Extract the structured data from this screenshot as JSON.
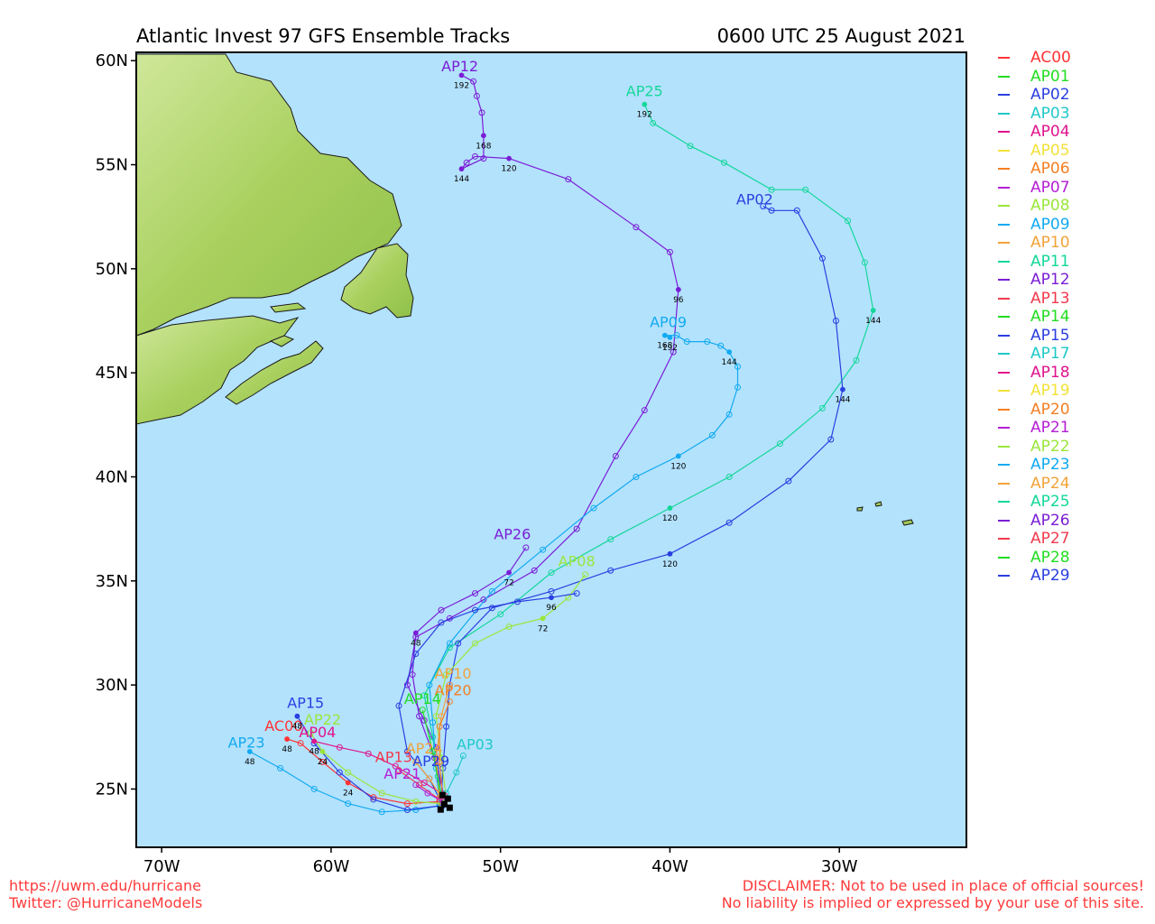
{
  "title_left": "Atlantic Invest 97 GFS Ensemble Tracks",
  "title_right": "0600 UTC 25 August 2021",
  "footer": {
    "url": "https://uwm.edu/hurricane",
    "twitter": "Twitter: @HurricaneModels",
    "disclaimer_1": "DISCLAIMER: Not to be used in place of official sources!",
    "disclaimer_2": "No liability is implied or expressed by your use of this site."
  },
  "colors": {
    "ocean": "#b3e2fd",
    "land": "#9fca55",
    "frame": "#000000"
  },
  "chart_data": {
    "type": "line",
    "xlim": [
      -71.5,
      -22.5
    ],
    "ylim": [
      22.2,
      60.4
    ],
    "x_ticks": [
      -70,
      -60,
      -50,
      -40,
      -30
    ],
    "x_tick_labels": [
      "70W",
      "60W",
      "50W",
      "40W",
      "30W"
    ],
    "y_ticks": [
      25,
      30,
      35,
      40,
      45,
      50,
      55,
      60
    ],
    "y_tick_labels": [
      "25N",
      "30N",
      "35N",
      "40N",
      "45N",
      "50N",
      "55N",
      "60N"
    ],
    "legend_placement": "right, outside plot",
    "legend": [
      {
        "name": "AC00",
        "color": "#ff3333"
      },
      {
        "name": "AP01",
        "color": "#22dd22"
      },
      {
        "name": "AP02",
        "color": "#2a3fe0"
      },
      {
        "name": "AP03",
        "color": "#20c8c8"
      },
      {
        "name": "AP04",
        "color": "#e0148c"
      },
      {
        "name": "AP05",
        "color": "#f2e23a"
      },
      {
        "name": "AP06",
        "color": "#f47f24"
      },
      {
        "name": "AP07",
        "color": "#b51ed6"
      },
      {
        "name": "AP08",
        "color": "#9be63a"
      },
      {
        "name": "AP09",
        "color": "#12aaf0"
      },
      {
        "name": "AP10",
        "color": "#f2a33a"
      },
      {
        "name": "AP11",
        "color": "#14d79a"
      },
      {
        "name": "AP12",
        "color": "#7a1ed6"
      },
      {
        "name": "AP13",
        "color": "#f23a4e"
      },
      {
        "name": "AP14",
        "color": "#22dd22"
      },
      {
        "name": "AP15",
        "color": "#2a3fe0"
      },
      {
        "name": "AP17",
        "color": "#20c8c8"
      },
      {
        "name": "AP18",
        "color": "#e0148c"
      },
      {
        "name": "AP19",
        "color": "#f2e23a"
      },
      {
        "name": "AP20",
        "color": "#f47f24"
      },
      {
        "name": "AP21",
        "color": "#b51ed6"
      },
      {
        "name": "AP22",
        "color": "#9be63a"
      },
      {
        "name": "AP23",
        "color": "#12aaf0"
      },
      {
        "name": "AP24",
        "color": "#f2a33a"
      },
      {
        "name": "AP25",
        "color": "#14d79a"
      },
      {
        "name": "AP26",
        "color": "#7a1ed6"
      },
      {
        "name": "AP27",
        "color": "#f23a4e"
      },
      {
        "name": "AP28",
        "color": "#22dd22"
      },
      {
        "name": "AP29",
        "color": "#2a3fe0"
      }
    ],
    "series": [
      {
        "name": "AP12",
        "color": "#7a1ed6",
        "lon": [
          -53.5,
          -53.6,
          -53.8,
          -54.5,
          -55.5,
          -55.0,
          -53.0,
          -51.0,
          -48.0,
          -45.5,
          -43.2,
          -41.5,
          -39.8,
          -39.5,
          -40.0,
          -42.0,
          -46.0,
          -49.5,
          -51.5,
          -52.0,
          -52.3,
          -51.0,
          -51.0,
          -51.1,
          -51.4,
          -51.6,
          -52.3
        ],
        "lat": [
          24.3,
          25.4,
          27.0,
          28.3,
          30.0,
          32.3,
          33.2,
          34.1,
          35.5,
          37.5,
          41.0,
          43.2,
          46.0,
          49.0,
          50.8,
          52.0,
          54.3,
          55.3,
          55.4,
          55.1,
          54.8,
          55.3,
          56.4,
          57.5,
          58.3,
          59.0,
          59.3
        ],
        "hours": [
          {
            "i": 13,
            "h": "96"
          },
          {
            "i": 17,
            "h": "120"
          },
          {
            "i": 20,
            "h": "144"
          },
          {
            "i": 22,
            "h": "168"
          },
          {
            "i": 26,
            "h": "192"
          }
        ],
        "label_at": [
          -52.4,
          59.5
        ]
      },
      {
        "name": "AP25",
        "color": "#14d79a",
        "lon": [
          -53.4,
          -53.7,
          -54.0,
          -54.5,
          -53.0,
          -50.0,
          -47.0,
          -43.5,
          -40.0,
          -36.5,
          -33.5,
          -31.0,
          -29.0,
          -28.0,
          -28.5,
          -29.5,
          -32.0,
          -34.0,
          -36.8,
          -38.8,
          -41.0,
          -41.5
        ],
        "lat": [
          24.4,
          25.6,
          27.5,
          29.5,
          31.8,
          33.4,
          35.4,
          37.0,
          38.5,
          40.0,
          41.6,
          43.3,
          45.6,
          48.0,
          50.3,
          52.3,
          53.8,
          53.8,
          55.1,
          55.9,
          57.0,
          57.9
        ],
        "hours": [
          {
            "i": 8,
            "h": "120"
          },
          {
            "i": 13,
            "h": "144"
          },
          {
            "i": 21,
            "h": "192"
          }
        ],
        "label_at": [
          -41.5,
          58.3
        ]
      },
      {
        "name": "AP02",
        "color": "#2a3fe0",
        "lon": [
          -53.5,
          -53.4,
          -53.2,
          -53.0,
          -52.5,
          -50.5,
          -47.0,
          -43.5,
          -40.0,
          -36.5,
          -33.0,
          -30.5,
          -29.8,
          -30.2,
          -31.0,
          -32.5,
          -34.0,
          -34.5
        ],
        "lat": [
          24.5,
          26.0,
          28.0,
          30.0,
          32.0,
          33.7,
          34.5,
          35.5,
          36.3,
          37.8,
          39.8,
          41.8,
          44.2,
          47.5,
          50.5,
          52.8,
          52.8,
          53.0
        ],
        "hours": [
          {
            "i": 8,
            "h": "120"
          },
          {
            "i": 12,
            "h": "144"
          }
        ],
        "label_at": [
          -35.0,
          53.1
        ]
      },
      {
        "name": "AP09",
        "color": "#12aaf0",
        "lon": [
          -53.6,
          -53.8,
          -54.0,
          -54.2,
          -53.0,
          -50.5,
          -47.5,
          -44.5,
          -42.0,
          -39.5,
          -37.5,
          -36.5,
          -36.0,
          -36.0,
          -36.5,
          -37.0,
          -37.8,
          -39.0,
          -39.6,
          -40.3,
          -40.0
        ],
        "lat": [
          24.3,
          26.0,
          28.2,
          30.0,
          32.0,
          34.5,
          36.5,
          38.5,
          40.0,
          41.0,
          42.0,
          43.0,
          44.3,
          45.3,
          46.0,
          46.3,
          46.5,
          46.5,
          46.8,
          46.8,
          46.7
        ],
        "hours": [
          {
            "i": 9,
            "h": "120"
          },
          {
            "i": 14,
            "h": "144"
          },
          {
            "i": 19,
            "h": "168"
          },
          {
            "i": 20,
            "h": "192"
          }
        ],
        "label_at": [
          -40.1,
          47.2
        ]
      },
      {
        "name": "AP26",
        "color": "#7a1ed6",
        "lon": [
          -53.3,
          -53.9,
          -54.8,
          -55.2,
          -55.0,
          -53.5,
          -51.5,
          -49.5,
          -48.5
        ],
        "lat": [
          24.6,
          26.5,
          28.5,
          30.5,
          32.5,
          33.6,
          34.4,
          35.4,
          36.6
        ],
        "hours": [
          {
            "i": 4,
            "h": "48"
          },
          {
            "i": 7,
            "h": "72"
          }
        ],
        "label_at": [
          -49.3,
          37.0
        ]
      },
      {
        "name": "AP08",
        "color": "#9be63a",
        "lon": [
          -53.2,
          -53.5,
          -53.8,
          -53.2,
          -51.5,
          -49.5,
          -47.5,
          -46.0,
          -45.0
        ],
        "lat": [
          24.5,
          26.5,
          28.5,
          30.5,
          32.0,
          32.8,
          33.2,
          34.2,
          35.3
        ],
        "hours": [
          {
            "i": 6,
            "h": "72"
          }
        ],
        "label_at": [
          -45.5,
          35.7
        ]
      },
      {
        "name": "AP29",
        "color": "#2a3fe0",
        "lon": [
          -53.4,
          -54.2,
          -55.5,
          -56.0,
          -55.0,
          -53.5,
          -51.5,
          -49.0,
          -47.0,
          -45.5
        ],
        "lat": [
          24.2,
          25.5,
          26.8,
          29.0,
          31.5,
          33.0,
          33.6,
          34.0,
          34.2,
          34.4
        ],
        "hours": [
          {
            "i": 8,
            "h": "96"
          }
        ],
        "label_at": [
          -54.1,
          26.1
        ]
      },
      {
        "name": "AP23",
        "color": "#12aaf0",
        "lon": [
          -53.6,
          -55.0,
          -57.0,
          -59.0,
          -61.0,
          -63.0,
          -64.8
        ],
        "lat": [
          24.2,
          24.0,
          23.9,
          24.3,
          25.0,
          26.0,
          26.8
        ],
        "hours": [
          {
            "i": 6,
            "h": "48"
          }
        ],
        "label_at": [
          -65.0,
          27.0
        ]
      },
      {
        "name": "AC00",
        "color": "#ff3333",
        "lon": [
          -53.6,
          -55.5,
          -57.5,
          -59.0,
          -60.5,
          -61.8,
          -62.6
        ],
        "lat": [
          24.4,
          24.3,
          24.6,
          25.3,
          26.3,
          27.2,
          27.4
        ],
        "hours": [
          {
            "i": 3,
            "h": "24"
          },
          {
            "i": 6,
            "h": "48"
          }
        ],
        "label_at": [
          -62.8,
          27.8
        ]
      },
      {
        "name": "AP15",
        "color": "#2a3fe0",
        "lon": [
          -53.5,
          -55.5,
          -57.5,
          -59.5,
          -61.0,
          -62.0
        ],
        "lat": [
          24.2,
          24.0,
          24.5,
          25.8,
          27.2,
          28.5
        ],
        "hours": [
          {
            "i": 5,
            "h": "48"
          }
        ],
        "label_at": [
          -61.5,
          28.9
        ]
      },
      {
        "name": "AP22",
        "color": "#9be63a",
        "lon": [
          -53.5,
          -55.0,
          -57.0,
          -59.0,
          -60.5,
          -61.2
        ],
        "lat": [
          24.3,
          24.4,
          24.8,
          25.8,
          26.8,
          27.7
        ],
        "hours": [
          {
            "i": 4,
            "h": "24"
          }
        ],
        "label_at": [
          -60.5,
          28.1
        ]
      },
      {
        "name": "AP04",
        "color": "#e0148c",
        "lon": [
          -53.3,
          -54.5,
          -56.2,
          -57.8,
          -59.5,
          -61.0
        ],
        "lat": [
          24.7,
          25.3,
          26.1,
          26.7,
          27.0,
          27.3
        ],
        "hours": [
          {
            "i": 5,
            "h": "48"
          }
        ],
        "label_at": [
          -60.8,
          27.5
        ]
      },
      {
        "name": "AP10",
        "color": "#f2a33a",
        "lon": [
          -53.6,
          -53.8,
          -53.5,
          -53.0
        ],
        "lat": [
          24.6,
          26.5,
          28.5,
          30.0
        ],
        "hours": [],
        "label_at": [
          -52.8,
          30.3
        ]
      },
      {
        "name": "AP20",
        "color": "#f47f24",
        "lon": [
          -53.4,
          -53.6,
          -53.6,
          -53.0
        ],
        "lat": [
          24.5,
          26.3,
          28.0,
          29.2
        ],
        "hours": [],
        "label_at": [
          -52.8,
          29.5
        ]
      },
      {
        "name": "AP14",
        "color": "#22dd22",
        "lon": [
          -53.5,
          -54.0,
          -54.6
        ],
        "lat": [
          24.6,
          26.8,
          28.8
        ],
        "hours": [],
        "label_at": [
          -54.6,
          29.1
        ]
      },
      {
        "name": "AP03",
        "color": "#20c8c8",
        "lon": [
          -53.2,
          -52.6,
          -52.2
        ],
        "lat": [
          24.8,
          25.8,
          26.6
        ],
        "hours": [],
        "label_at": [
          -51.5,
          26.9
        ]
      },
      {
        "name": "AP24",
        "color": "#f2a33a",
        "lon": [
          -53.5,
          -54.2,
          -55.0
        ],
        "lat": [
          24.6,
          25.5,
          26.3
        ],
        "hours": [],
        "label_at": [
          -54.5,
          26.7
        ]
      },
      {
        "name": "AP13",
        "color": "#f23a4e",
        "lon": [
          -53.6,
          -54.8,
          -56.0
        ],
        "lat": [
          24.5,
          25.2,
          25.9
        ],
        "hours": [],
        "label_at": [
          -56.3,
          26.3
        ]
      },
      {
        "name": "AP21",
        "color": "#b51ed6",
        "lon": [
          -53.4,
          -54.3,
          -55.0
        ],
        "lat": [
          24.4,
          24.8,
          25.2
        ],
        "hours": [],
        "label_at": [
          -55.8,
          25.5
        ]
      }
    ]
  }
}
